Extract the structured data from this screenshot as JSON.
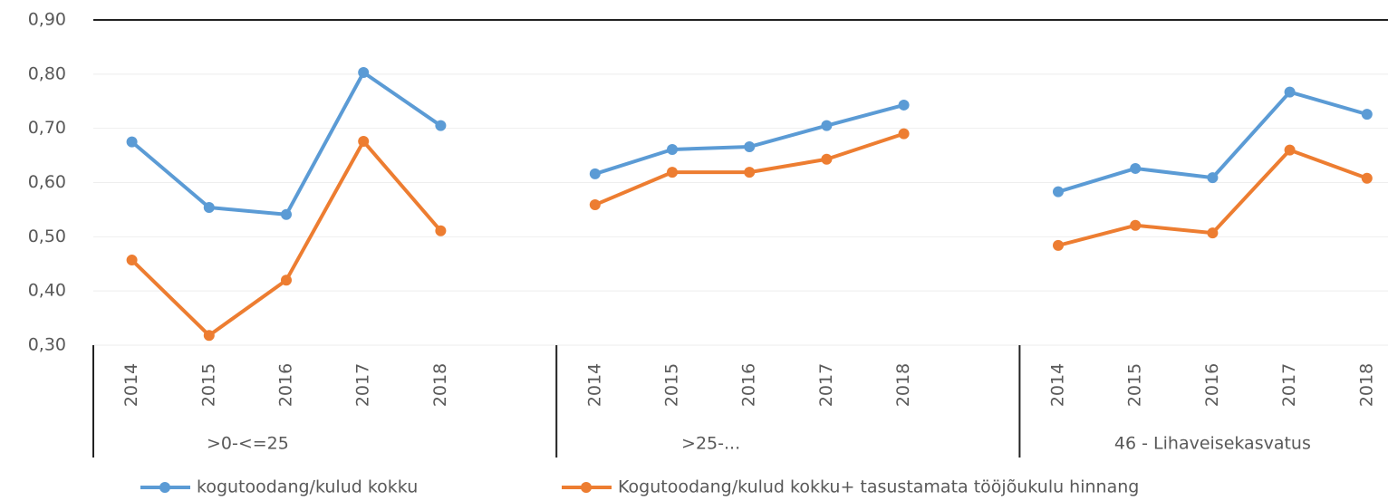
{
  "chart_data": {
    "type": "line",
    "categories": [
      "2014",
      "2015",
      "2016",
      "2017",
      "2018",
      null,
      "2014",
      "2015",
      "2016",
      "2017",
      "2018",
      null,
      "2014",
      "2015",
      "2016",
      "2017",
      "2018"
    ],
    "groups": [
      {
        "label": ">0-<=25"
      },
      {
        "label": ">25-..."
      },
      {
        "label": "46 - Lihaveisekasvatus"
      }
    ],
    "series": [
      {
        "name": "kogutoodang/kulud kokku",
        "color": "#5b9bd5",
        "values": [
          0.675,
          0.554,
          0.541,
          0.803,
          0.705,
          null,
          0.616,
          0.661,
          0.666,
          0.705,
          0.743,
          null,
          0.583,
          0.626,
          0.609,
          0.767,
          0.726
        ]
      },
      {
        "name": "Kogutoodang/kulud kokku+ tasustamata tööjõukulu hinnang",
        "color": "#ed7d31",
        "values": [
          0.457,
          0.318,
          0.42,
          0.676,
          0.511,
          null,
          0.559,
          0.619,
          0.619,
          0.643,
          0.69,
          null,
          0.484,
          0.521,
          0.507,
          0.66,
          0.608
        ]
      }
    ],
    "ylim": [
      0.3,
      0.9
    ],
    "yticks": [
      {
        "value": 0.3,
        "label": "0,30"
      },
      {
        "value": 0.4,
        "label": "0,40"
      },
      {
        "value": 0.5,
        "label": "0,50"
      },
      {
        "value": 0.6,
        "label": "0,60"
      },
      {
        "value": 0.7,
        "label": "0,70"
      },
      {
        "value": 0.8,
        "label": "0,80"
      },
      {
        "value": 0.9,
        "label": "0,90"
      }
    ],
    "grid": true,
    "legend": "bottom"
  }
}
